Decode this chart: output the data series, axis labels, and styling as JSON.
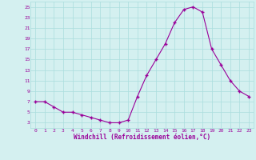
{
  "x": [
    0,
    1,
    2,
    3,
    4,
    5,
    6,
    7,
    8,
    9,
    10,
    11,
    12,
    13,
    14,
    15,
    16,
    17,
    18,
    19,
    20,
    21,
    22,
    23
  ],
  "y": [
    7,
    7,
    6,
    5,
    5,
    4.5,
    4,
    3.5,
    3,
    3,
    3.5,
    8,
    12,
    15,
    18,
    22,
    24.5,
    25,
    24,
    17,
    14,
    11,
    9,
    8
  ],
  "line_color": "#990099",
  "marker_color": "#990099",
  "bg_color": "#d4f0f0",
  "grid_color": "#aadddd",
  "xlabel": "Windchill (Refroidissement éolien,°C)",
  "xlim": [
    -0.5,
    23.5
  ],
  "ylim": [
    2,
    26
  ],
  "yticks": [
    3,
    5,
    7,
    9,
    11,
    13,
    15,
    17,
    19,
    21,
    23,
    25
  ],
  "xticks": [
    0,
    1,
    2,
    3,
    4,
    5,
    6,
    7,
    8,
    9,
    10,
    11,
    12,
    13,
    14,
    15,
    16,
    17,
    18,
    19,
    20,
    21,
    22,
    23
  ],
  "figsize": [
    3.2,
    2.0
  ],
  "dpi": 100
}
